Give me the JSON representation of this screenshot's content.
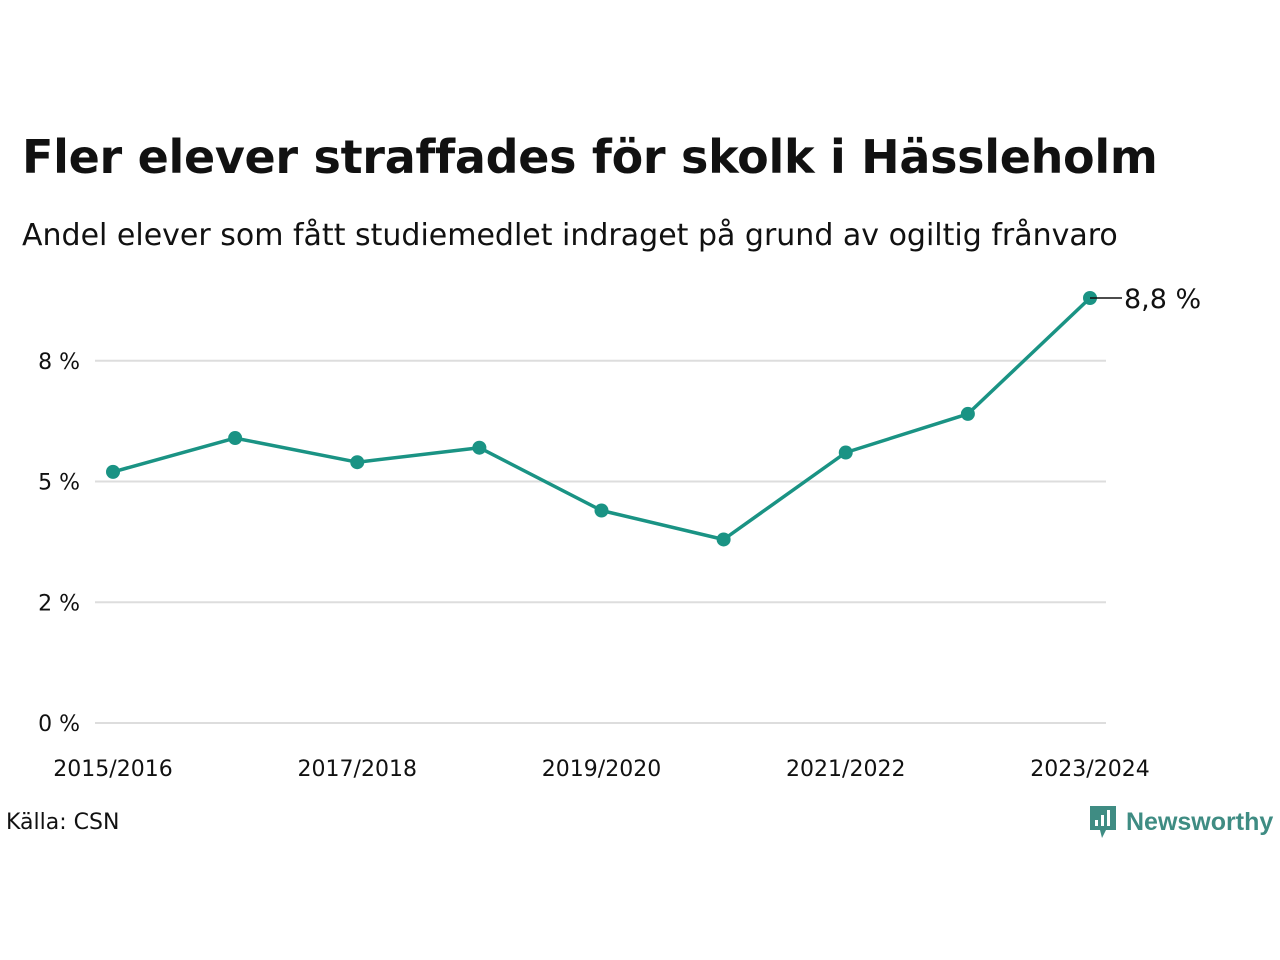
{
  "title": "Fler elever straffades för skolk i Hässleholm",
  "subtitle": "Andel elever som fått studiemedlet indraget på grund av ogiltig frånvaro",
  "source": "Källa: CSN",
  "brand": {
    "name": "Newsworthy",
    "color": "#3f8c83"
  },
  "chart_data": {
    "type": "line",
    "title": "Fler elever straffades för skolk i Hässleholm",
    "subtitle": "Andel elever som fått studiemedlet indraget på grund av ogiltig frånvaro",
    "x": [
      "2015/2016",
      "2016/2017",
      "2017/2018",
      "2018/2019",
      "2019/2020",
      "2020/2021",
      "2021/2022",
      "2022/2023",
      "2023/2024"
    ],
    "x_tick_labels": [
      "2015/2016",
      "2017/2018",
      "2019/2020",
      "2021/2022",
      "2023/2024"
    ],
    "series": [
      {
        "values": [
          5.2,
          5.9,
          5.4,
          5.7,
          4.4,
          3.8,
          5.6,
          6.4,
          8.8
        ],
        "color": "#1a9384"
      }
    ],
    "y_ticks": [
      {
        "value": 0,
        "label": "0 %"
      },
      {
        "value": 2.5,
        "label": "2 %"
      },
      {
        "value": 5,
        "label": "5 %"
      },
      {
        "value": 7.5,
        "label": "8 %"
      }
    ],
    "ylim": [
      0,
      8.8
    ],
    "end_label": "8,8 %",
    "grid": true,
    "gridline_color": "#dddddd"
  }
}
